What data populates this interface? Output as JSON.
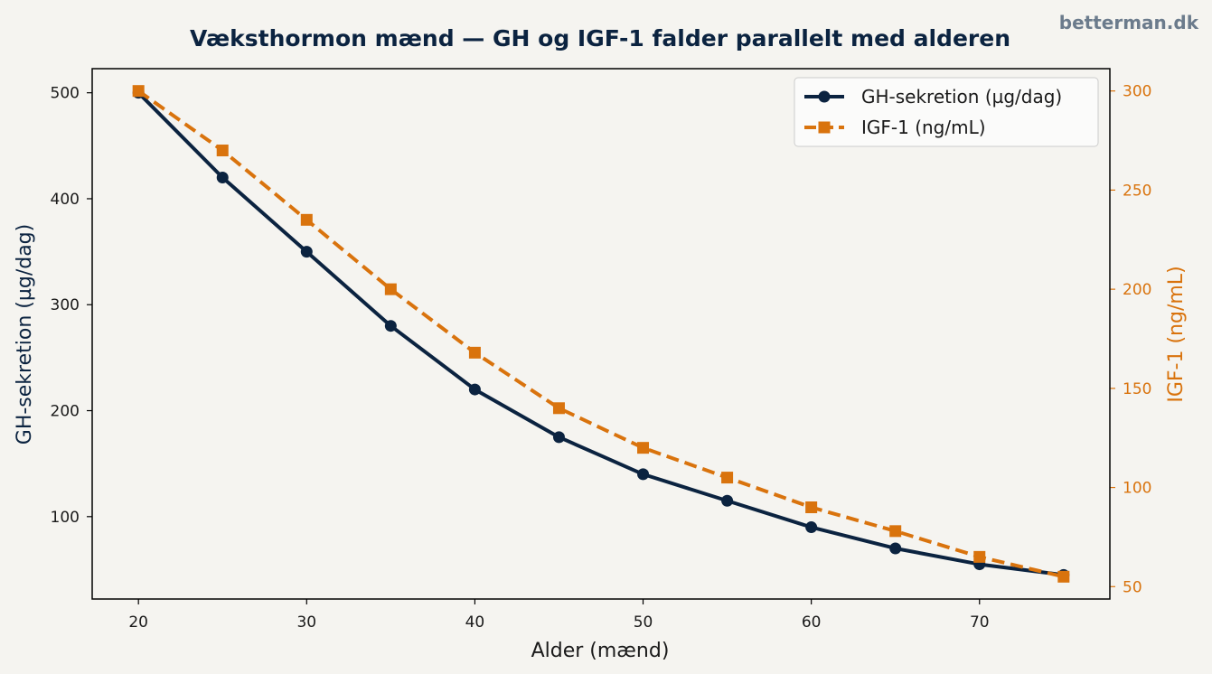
{
  "brand": "betterman.dk",
  "colors": {
    "gh": "#0b2340",
    "igf": "#d9730d",
    "background": "#f5f4f0"
  },
  "chart_data": {
    "type": "line",
    "title": "Væksthormon mænd — GH og IGF-1 falder parallelt med alderen",
    "xlabel": "Alder (mænd)",
    "ylabel_left": "GH-sekretion (µg/dag)",
    "ylabel_right": "IGF-1 (ng/mL)",
    "x": [
      20,
      25,
      30,
      35,
      40,
      45,
      50,
      55,
      60,
      65,
      70,
      75
    ],
    "xlim": [
      17.25,
      77.75
    ],
    "xticks": [
      20,
      30,
      40,
      50,
      60,
      70
    ],
    "ylim_left": [
      22.25,
      522.75
    ],
    "yticks_left": [
      100,
      200,
      300,
      400,
      500
    ],
    "ylim_right": [
      43.75,
      311.25
    ],
    "yticks_right": [
      50,
      100,
      150,
      200,
      250,
      300
    ],
    "legend_position": "top-right",
    "grid": false,
    "series": [
      {
        "name": "GH-sekretion (µg/dag)",
        "axis": "left",
        "style": "solid",
        "marker": "circle",
        "values": [
          500,
          420,
          350,
          280,
          220,
          175,
          140,
          115,
          90,
          70,
          55,
          45
        ]
      },
      {
        "name": "IGF-1 (ng/mL)",
        "axis": "right",
        "style": "dashed",
        "marker": "square",
        "values": [
          300,
          270,
          235,
          200,
          168,
          140,
          120,
          105,
          90,
          78,
          65,
          55
        ]
      }
    ]
  }
}
